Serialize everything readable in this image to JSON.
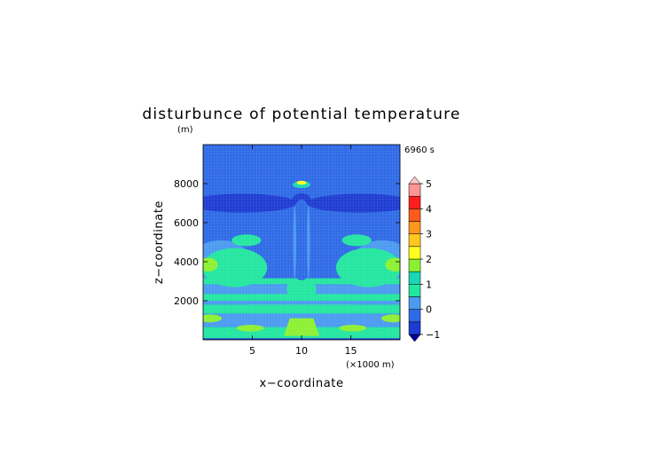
{
  "chart_data": {
    "type": "heatmap",
    "title": "disturbunce of potential temperature",
    "y_unit_label": "(m)",
    "time_label": "6960 s",
    "xlabel": "x−coordinate",
    "ylabel": "z−coordinate",
    "x_unit_label": "(×1000 m)",
    "xlim": [
      0,
      20
    ],
    "ylim": [
      0,
      10000
    ],
    "x_ticks": [
      5,
      10,
      15
    ],
    "x_tick_labels": [
      "5",
      "10",
      "15"
    ],
    "y_ticks": [
      2000,
      4000,
      6000,
      8000
    ],
    "y_tick_labels": [
      "2000",
      "4000",
      "6000",
      "8000"
    ],
    "colorbar": {
      "levels": [
        -1,
        -0.5,
        0,
        0.5,
        1,
        1.5,
        2,
        2.5,
        3,
        3.5,
        4,
        4.5,
        5
      ],
      "tick_values": [
        -1,
        0,
        1,
        2,
        3,
        4,
        5
      ],
      "tick_labels": [
        "−1",
        "0",
        "1",
        "2",
        "3",
        "4",
        "5"
      ],
      "colors": [
        "#1e3cd2",
        "#2f6ae6",
        "#4a9af0",
        "#23e6a0",
        "#19d7b4",
        "#8cf032",
        "#ffff1e",
        "#ffc81e",
        "#ff961e",
        "#ff5a1e",
        "#ff1e1e",
        "#ff9696"
      ],
      "under_color": "#000096",
      "over_color": "#ffc8c8"
    },
    "fields": [
      {
        "level": "-0.5",
        "shape": "rect",
        "x": [
          0,
          20
        ],
        "y": [
          0,
          10000
        ]
      },
      {
        "level": "-0.5",
        "shape": "ellipse",
        "cx": 10,
        "cy": 8300,
        "rx": 1.1,
        "ry": 1300
      },
      {
        "level": "-1",
        "shape": "ellipse",
        "cx": 4,
        "cy": 7000,
        "rx": 5.5,
        "ry": 480
      },
      {
        "level": "-1",
        "shape": "ellipse",
        "cx": 16,
        "cy": 7000,
        "rx": 5.5,
        "ry": 480
      },
      {
        "level": "-1",
        "shape": "ellipse",
        "cx": 10,
        "cy": 7100,
        "rx": 1.0,
        "ry": 400
      },
      {
        "level": "0",
        "shape": "band",
        "y": [
          2350,
          2850
        ]
      },
      {
        "level": "0",
        "shape": "band",
        "y": [
          1800,
          2000
        ]
      },
      {
        "level": "0",
        "shape": "band",
        "y": [
          650,
          1350
        ]
      },
      {
        "level": "0",
        "shape": "ellipse",
        "cx": 1.8,
        "cy": 3900,
        "rx": 3.2,
        "ry": 1200
      },
      {
        "level": "0",
        "shape": "ellipse",
        "cx": 18.2,
        "cy": 3900,
        "rx": 3.2,
        "ry": 1200
      },
      {
        "level": "0",
        "shape": "ellipse",
        "cx": 10,
        "cy": 1500,
        "rx": 5.5,
        "ry": 1400
      },
      {
        "level": "0",
        "shape": "ellipse",
        "cx": 10,
        "cy": 200,
        "rx": 10,
        "ry": 350
      },
      {
        "level": "0.5",
        "shape": "band",
        "y": [
          2850,
          3150
        ]
      },
      {
        "level": "0.5",
        "shape": "band",
        "y": [
          2000,
          2350
        ]
      },
      {
        "level": "0.5",
        "shape": "band",
        "y": [
          1350,
          1800
        ]
      },
      {
        "level": "0.5",
        "shape": "band",
        "y": [
          0,
          650
        ]
      },
      {
        "level": "0.5",
        "shape": "ellipse",
        "cx": 3.2,
        "cy": 3700,
        "rx": 3.3,
        "ry": 1000
      },
      {
        "level": "0.5",
        "shape": "ellipse",
        "cx": 16.8,
        "cy": 3700,
        "rx": 3.3,
        "ry": 1000
      },
      {
        "level": "0.5",
        "shape": "ellipse",
        "cx": 10,
        "cy": 2600,
        "rx": 1.5,
        "ry": 600
      },
      {
        "level": "0.5",
        "shape": "ellipse",
        "cx": 4.4,
        "cy": 5100,
        "rx": 1.5,
        "ry": 300
      },
      {
        "level": "0.5",
        "shape": "ellipse",
        "cx": 15.6,
        "cy": 5100,
        "rx": 1.5,
        "ry": 300
      },
      {
        "level": "0.5",
        "shape": "ellipse",
        "cx": 2.0,
        "cy": 250,
        "rx": 1.8,
        "ry": 200
      },
      {
        "level": "0.5",
        "shape": "ellipse",
        "cx": 18.0,
        "cy": 250,
        "rx": 1.8,
        "ry": 200
      },
      {
        "level": "-0.5",
        "shape": "ellipse",
        "cx": 10,
        "cy": 5200,
        "rx": 1.2,
        "ry": 2000
      },
      {
        "level": "-0.5",
        "shape": "ellipse",
        "cx": 10,
        "cy": 4700,
        "rx": 0.7,
        "ry": 1300
      },
      {
        "level": "-0.5",
        "shape": "ellipse",
        "cx": 10,
        "cy": 3300,
        "rx": 0.6,
        "ry": 250
      },
      {
        "level": "0",
        "shape": "ellipse",
        "cx": 9.3,
        "cy": 5000,
        "rx": 0.15,
        "ry": 1900
      },
      {
        "level": "0",
        "shape": "ellipse",
        "cx": 10.7,
        "cy": 5000,
        "rx": 0.15,
        "ry": 1900
      },
      {
        "level": "1.5",
        "shape": "ellipse",
        "cx": 0.5,
        "cy": 3850,
        "rx": 1.0,
        "ry": 350
      },
      {
        "level": "1.5",
        "shape": "ellipse",
        "cx": 19.5,
        "cy": 3850,
        "rx": 1.0,
        "ry": 350
      },
      {
        "level": "1.5",
        "shape": "ellipse",
        "cx": 0.7,
        "cy": 1100,
        "rx": 1.2,
        "ry": 200
      },
      {
        "level": "1.5",
        "shape": "ellipse",
        "cx": 19.3,
        "cy": 1100,
        "rx": 1.2,
        "ry": 200
      },
      {
        "level": "1.5",
        "shape": "ellipse",
        "cx": 4.8,
        "cy": 600,
        "rx": 1.4,
        "ry": 170
      },
      {
        "level": "1.5",
        "shape": "ellipse",
        "cx": 15.2,
        "cy": 600,
        "rx": 1.4,
        "ry": 170
      },
      {
        "level": "1.5",
        "shape": "poly",
        "points": [
          [
            8.2,
            200
          ],
          [
            8.8,
            1100
          ],
          [
            11.2,
            1100
          ],
          [
            11.8,
            200
          ]
        ]
      },
      {
        "level": "1",
        "shape": "ellipse",
        "cx": 10,
        "cy": 7950,
        "rx": 0.9,
        "ry": 180
      },
      {
        "level": "2",
        "shape": "ellipse",
        "cx": 10,
        "cy": 8050,
        "rx": 0.5,
        "ry": 100
      },
      {
        "level": "-1",
        "shape": "band",
        "y": [
          0,
          80
        ]
      }
    ]
  }
}
